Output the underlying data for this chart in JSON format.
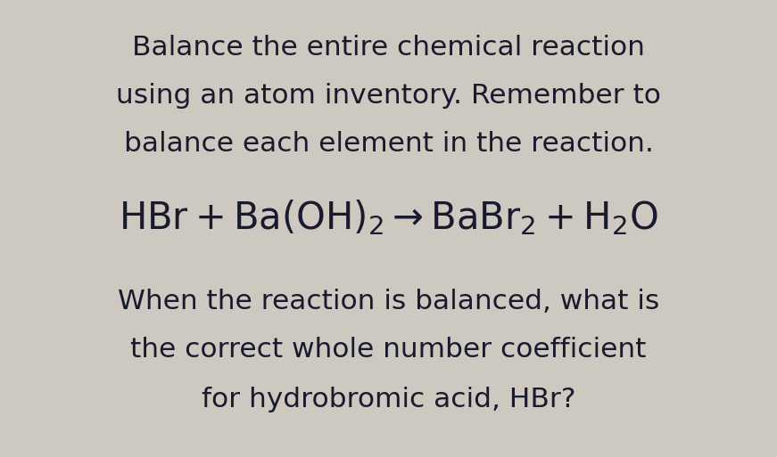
{
  "background_color": "#cdc9c0",
  "text_color": "#1a1a2e",
  "line1": "Balance the entire chemical reaction",
  "line2": "using an atom inventory. Remember to",
  "line3": "balance each element in the reaction.",
  "bottom_line1": "When the reaction is balanced, what is",
  "bottom_line2": "the correct whole number coefficient",
  "bottom_line3": "for hydrobromic acid, HBr?",
  "body_fontsize": 22.5,
  "equation_fontsize": 30,
  "fig_width": 8.71,
  "fig_height": 5.13,
  "dpi": 100
}
